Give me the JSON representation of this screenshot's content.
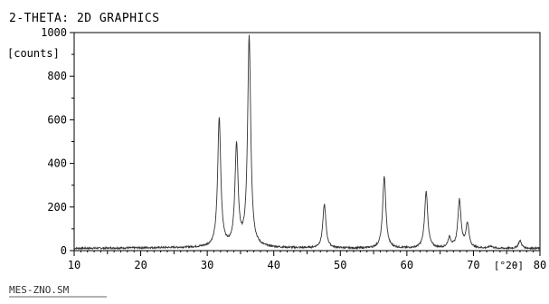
{
  "chart_data": {
    "type": "line",
    "title": "2-THETA: 2D GRAPHICS",
    "ylabel": "[counts]",
    "xunit_label": "[°2θ]",
    "footer_label": "MES-ZNO.SM",
    "xlim": [
      10,
      80
    ],
    "ylim": [
      0,
      1000
    ],
    "x_ticks": [
      10,
      20,
      30,
      40,
      50,
      60,
      70,
      80
    ],
    "x_tick_labels_shown": [
      "10",
      "20",
      "30",
      "40",
      "50",
      "60",
      "70",
      "80"
    ],
    "y_ticks": [
      0,
      200,
      400,
      600,
      800,
      1000
    ],
    "y_tick_labels": [
      "0",
      "200",
      "400",
      "600",
      "800",
      "1000"
    ],
    "grid": false,
    "baseline": 10,
    "peaks": [
      {
        "x": 31.8,
        "y": 600
      },
      {
        "x": 34.4,
        "y": 470
      },
      {
        "x": 36.3,
        "y": 970
      },
      {
        "x": 47.6,
        "y": 210
      },
      {
        "x": 56.6,
        "y": 340
      },
      {
        "x": 62.9,
        "y": 270
      },
      {
        "x": 66.4,
        "y": 55
      },
      {
        "x": 67.9,
        "y": 230
      },
      {
        "x": 69.1,
        "y": 120
      },
      {
        "x": 72.6,
        "y": 20
      },
      {
        "x": 77.0,
        "y": 45
      }
    ],
    "color": "#333333"
  }
}
